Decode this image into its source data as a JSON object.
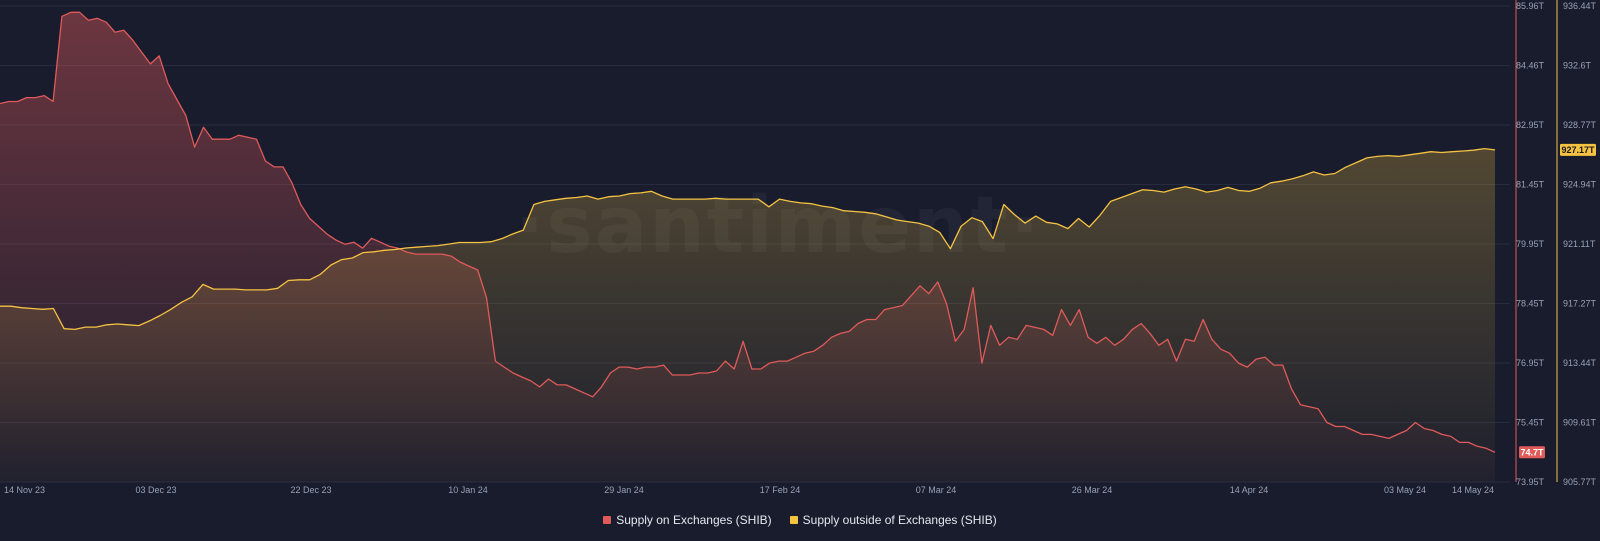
{
  "chart_data": {
    "type": "area",
    "x_labels": [
      "14 Nov 23",
      "03 Dec 23",
      "22 Dec 23",
      "10 Jan 24",
      "29 Jan 24",
      "17 Feb 24",
      "07 Mar 24",
      "26 Mar 24",
      "14 Apr 24",
      "03 May 24",
      "14 May 24"
    ],
    "left_axis": {
      "ticks": [
        "85.96T",
        "84.46T",
        "82.95T",
        "81.45T",
        "79.95T",
        "78.45T",
        "76.95T",
        "75.45T",
        "73.95T"
      ],
      "min": 73.95,
      "max": 85.96,
      "color": "#e05a5a"
    },
    "right_axis": {
      "ticks": [
        "936.44T",
        "932.6T",
        "928.77T",
        "924.94T",
        "921.11T",
        "917.27T",
        "913.44T",
        "909.61T",
        "905.77T"
      ],
      "min": 905.77,
      "max": 936.44,
      "color": "#f5c242"
    },
    "series": [
      {
        "name": "Supply on Exchanges (SHIB)",
        "axis": "left",
        "color": "#e05a5a",
        "last_value_label": "74.7T",
        "values": [
          83.5,
          83.55,
          83.55,
          83.65,
          83.65,
          83.7,
          83.55,
          85.7,
          85.8,
          85.8,
          85.6,
          85.65,
          85.55,
          85.3,
          85.35,
          85.1,
          84.8,
          84.5,
          84.7,
          84.0,
          83.6,
          83.2,
          82.4,
          82.9,
          82.6,
          82.6,
          82.6,
          82.7,
          82.65,
          82.6,
          82.05,
          81.9,
          81.9,
          81.5,
          80.95,
          80.6,
          80.4,
          80.2,
          80.05,
          79.95,
          80.0,
          79.85,
          80.1,
          80.0,
          79.9,
          79.85,
          79.75,
          79.7,
          79.7,
          79.7,
          79.7,
          79.65,
          79.5,
          79.4,
          79.3,
          78.6,
          77.0,
          76.85,
          76.7,
          76.6,
          76.5,
          76.35,
          76.55,
          76.4,
          76.4,
          76.3,
          76.2,
          76.1,
          76.35,
          76.7,
          76.85,
          76.85,
          76.8,
          76.85,
          76.85,
          76.9,
          76.65,
          76.65,
          76.65,
          76.7,
          76.7,
          76.75,
          77.0,
          76.8,
          77.5,
          76.8,
          76.8,
          76.95,
          77.0,
          77.0,
          77.1,
          77.2,
          77.25,
          77.4,
          77.6,
          77.7,
          77.75,
          77.95,
          78.05,
          78.05,
          78.3,
          78.35,
          78.4,
          78.65,
          78.9,
          78.7,
          79.0,
          78.45,
          77.5,
          77.8,
          78.85,
          76.95,
          77.9,
          77.4,
          77.6,
          77.55,
          77.9,
          77.85,
          77.8,
          77.65,
          78.3,
          77.9,
          78.3,
          77.6,
          77.45,
          77.6,
          77.4,
          77.55,
          77.8,
          77.95,
          77.7,
          77.4,
          77.55,
          77.0,
          77.55,
          77.5,
          78.05,
          77.55,
          77.3,
          77.2,
          76.95,
          76.85,
          77.05,
          77.1,
          76.9,
          76.9,
          76.3,
          75.9,
          75.85,
          75.8,
          75.45,
          75.35,
          75.35,
          75.25,
          75.15,
          75.15,
          75.1,
          75.05,
          75.15,
          75.25,
          75.45,
          75.3,
          75.25,
          75.15,
          75.1,
          74.95,
          74.95,
          74.85,
          74.8,
          74.7
        ]
      },
      {
        "name": "Supply outside of Exchanges (SHIB)",
        "axis": "right",
        "color": "#f5c242",
        "last_value_label": "927.17T",
        "values": [
          917.1,
          917.1,
          917.0,
          916.95,
          916.9,
          916.95,
          915.65,
          915.6,
          915.75,
          915.75,
          915.9,
          915.95,
          915.9,
          915.85,
          916.15,
          916.5,
          916.9,
          917.35,
          917.7,
          918.5,
          918.2,
          918.2,
          918.2,
          918.15,
          918.15,
          918.15,
          918.25,
          918.75,
          918.8,
          918.8,
          919.15,
          919.75,
          920.1,
          920.2,
          920.55,
          920.6,
          920.7,
          920.75,
          920.85,
          920.9,
          920.95,
          921.0,
          921.1,
          921.2,
          921.2,
          921.2,
          921.25,
          921.45,
          921.75,
          922.0,
          923.65,
          923.85,
          923.95,
          924.05,
          924.1,
          924.2,
          924.0,
          924.15,
          924.2,
          924.35,
          924.4,
          924.5,
          924.2,
          924.0,
          924.0,
          924.0,
          924.0,
          924.05,
          924.0,
          924.0,
          924.0,
          924.0,
          923.5,
          924.0,
          923.85,
          923.75,
          923.7,
          923.55,
          923.45,
          923.25,
          923.2,
          923.15,
          923.05,
          922.85,
          922.65,
          922.55,
          922.45,
          922.25,
          921.85,
          920.8,
          922.25,
          922.8,
          922.55,
          921.45,
          923.65,
          923.0,
          922.45,
          922.9,
          922.5,
          922.4,
          922.1,
          922.75,
          922.2,
          922.95,
          923.85,
          924.1,
          924.35,
          924.6,
          924.55,
          924.45,
          924.65,
          924.8,
          924.65,
          924.45,
          924.55,
          924.75,
          924.55,
          924.5,
          924.7,
          925.05,
          925.15,
          925.3,
          925.5,
          925.75,
          925.55,
          925.65,
          926.05,
          926.35,
          926.65,
          926.75,
          926.8,
          926.75,
          926.85,
          926.95,
          927.05,
          927.0,
          927.05,
          927.1,
          927.15,
          927.25,
          927.17
        ]
      }
    ],
    "watermark": "·santiment·",
    "grid": true,
    "legend_position": "bottom-center"
  }
}
